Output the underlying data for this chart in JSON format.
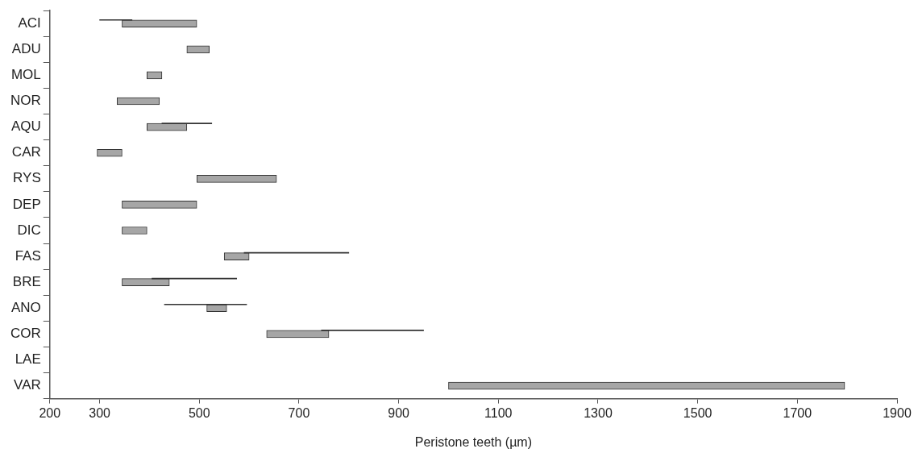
{
  "chart_data": {
    "type": "bar",
    "orientation": "horizontal",
    "xlabel": "Peristone teeth (µm)",
    "categories": [
      "ACI",
      "ADU",
      "MOL",
      "NOR",
      "AQU",
      "CAR",
      "RYS",
      "DEP",
      "DIC",
      "FAS",
      "BRE",
      "ANO",
      "COR",
      "LAE",
      "VAR"
    ],
    "series": [
      {
        "color": "#a6a6a6",
        "base": [
          345,
          475,
          395,
          335,
          395,
          295,
          495,
          345,
          345,
          550,
          345,
          515,
          635,
          null,
          1000
        ],
        "values": [
          150,
          45,
          30,
          85,
          80,
          50,
          160,
          150,
          50,
          50,
          95,
          40,
          125,
          null,
          795
        ]
      },
      {
        "color": "#333333",
        "base": [
          300,
          null,
          null,
          null,
          425,
          null,
          null,
          null,
          null,
          590,
          405,
          430,
          745,
          null,
          null
        ],
        "values": [
          65,
          null,
          null,
          null,
          100,
          null,
          null,
          null,
          null,
          210,
          170,
          165,
          205,
          null,
          null
        ]
      }
    ],
    "xlim": [
      200,
      1900
    ],
    "xticks": [
      200,
      300,
      500,
      700,
      900,
      1100,
      1300,
      1500,
      1700,
      1900
    ],
    "grid": false,
    "legend": false
  }
}
